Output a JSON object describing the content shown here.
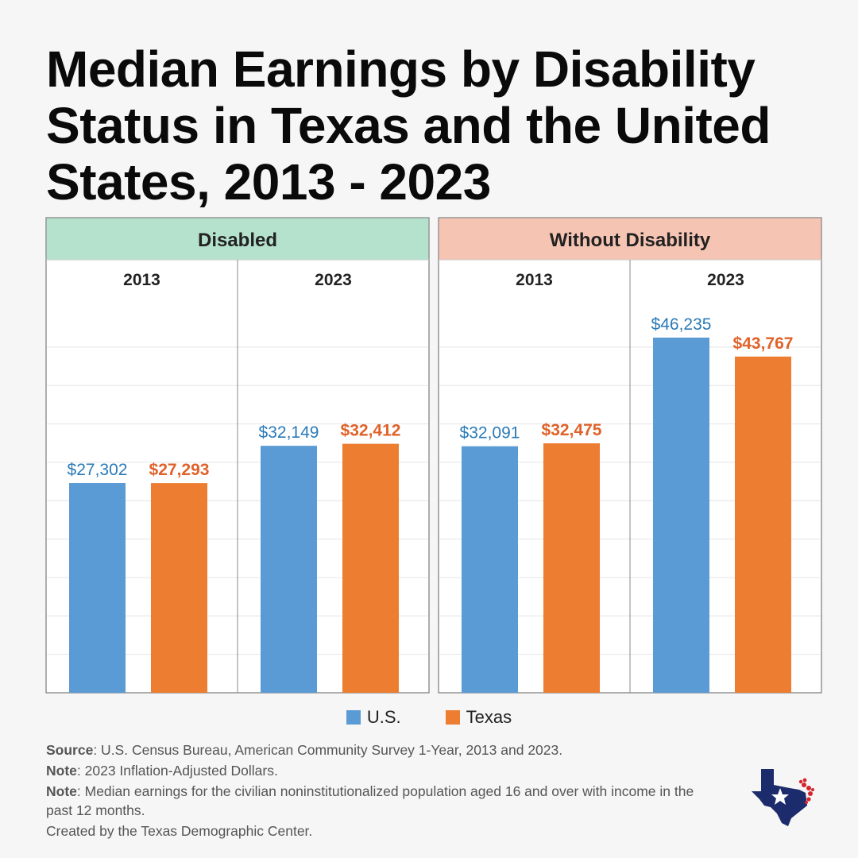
{
  "title": "Median Earnings by Disability Status in Texas and the United States, 2013 - 2023",
  "colors": {
    "us": "#5b9bd5",
    "texas": "#ed7d31",
    "us_label": "#2a7ab8",
    "texas_label": "#e0622a",
    "disabled_header": "#b5e2cd",
    "without_header": "#f6c4b3"
  },
  "legend": {
    "us": "U.S.",
    "texas": "Texas"
  },
  "notes": {
    "source_label": "Source",
    "source_text": ": U.S. Census Bureau, American Community Survey 1-Year, 2013 and 2023.",
    "note1_label": "Note",
    "note1_text": ": 2023 Inflation-Adjusted Dollars.",
    "note2_label": "Note",
    "note2_text": ": Median earnings for the civilian noninstitutionalized population aged 16 and over with income in the past 12 months.",
    "credit": "Created by the Texas Demographic Center."
  },
  "chart_data": {
    "type": "bar",
    "title": "Median Earnings by Disability Status in Texas and the United States, 2013 - 2023",
    "ylim": [
      0,
      50000
    ],
    "grid": true,
    "legend_position": "bottom-center",
    "panels": [
      {
        "name": "Disabled",
        "groups": [
          {
            "year": "2013",
            "us": 27302,
            "texas": 27293,
            "us_label": "$27,302",
            "texas_label": "$27,293"
          },
          {
            "year": "2023",
            "us": 32149,
            "texas": 32412,
            "us_label": "$32,149",
            "texas_label": "$32,412"
          }
        ]
      },
      {
        "name": "Without Disability",
        "groups": [
          {
            "year": "2013",
            "us": 32091,
            "texas": 32475,
            "us_label": "$32,091",
            "texas_label": "$32,475"
          },
          {
            "year": "2023",
            "us": 46235,
            "texas": 43767,
            "us_label": "$46,235",
            "texas_label": "$43,767"
          }
        ]
      }
    ],
    "series": [
      {
        "name": "U.S.",
        "key": "us"
      },
      {
        "name": "Texas",
        "key": "texas"
      }
    ]
  }
}
